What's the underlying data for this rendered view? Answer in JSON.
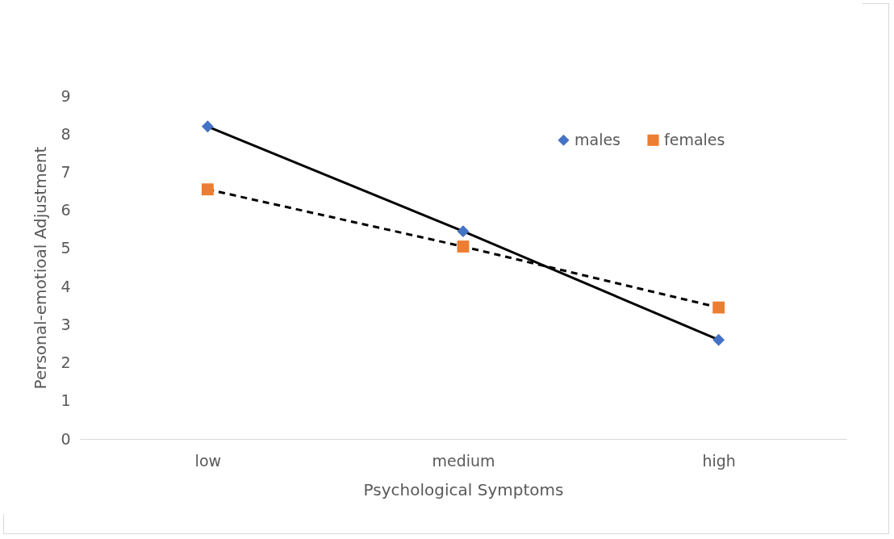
{
  "chart_data": {
    "type": "line",
    "xlabel": "Psychological Symptoms",
    "ylabel": "Personal-emotioal Adjustment",
    "categories": [
      "low",
      "medium",
      "high"
    ],
    "series": [
      {
        "name": "males",
        "color": "#4472c4",
        "values": [
          8.2,
          5.45,
          2.6
        ],
        "marker": "diamond",
        "line_style": "solid"
      },
      {
        "name": "females",
        "color": "#ed7d31",
        "values": [
          6.55,
          5.05,
          3.45
        ],
        "marker": "square",
        "line_style": "dashed"
      }
    ],
    "ylim": [
      0,
      9
    ],
    "yticks": [
      0,
      1,
      2,
      3,
      4,
      5,
      6,
      7,
      8,
      9
    ],
    "grid": false,
    "legend": "top right"
  }
}
